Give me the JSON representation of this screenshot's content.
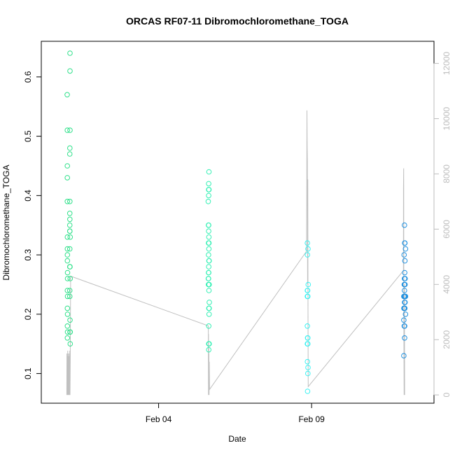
{
  "chart_data": {
    "type": "scatter",
    "title": "ORCAS RF07-11 Dibromochloromethane_TOGA",
    "xlabel": "Date",
    "ylabel": "Dibromochloromethane_TOGA",
    "x_axis": {
      "type": "date",
      "range": [
        "2016-01-31T04:00",
        "2016-02-13T00:00"
      ],
      "ticks": [
        {
          "value": "2016-02-04T00:00",
          "label": "Feb 04"
        },
        {
          "value": "2016-02-09T00:00",
          "label": "Feb 09"
        }
      ]
    },
    "y_axis": {
      "range": [
        0.05,
        0.66
      ],
      "ticks": [
        0.1,
        0.2,
        0.3,
        0.4,
        0.5,
        0.6
      ]
    },
    "y2_axis": {
      "range": [
        -300,
        12800
      ],
      "ticks": [
        0,
        2000,
        4000,
        6000,
        8000,
        10000,
        12000
      ],
      "color": "#bdbdbd"
    },
    "grid": false,
    "legend": "none",
    "series": [
      {
        "color": "#2fe08a",
        "points": [
          [
            "2016-02-01T00:20",
            0.57
          ],
          [
            "2016-02-01T00:25",
            0.51
          ],
          [
            "2016-02-01T00:25",
            0.45
          ],
          [
            "2016-02-01T00:25",
            0.43
          ],
          [
            "2016-02-01T00:25",
            0.39
          ],
          [
            "2016-02-01T00:30",
            0.33
          ],
          [
            "2016-02-01T00:30",
            0.31
          ],
          [
            "2016-02-01T00:30",
            0.3
          ],
          [
            "2016-02-01T00:30",
            0.29
          ],
          [
            "2016-02-01T00:35",
            0.27
          ],
          [
            "2016-02-01T00:35",
            0.26
          ],
          [
            "2016-02-01T00:30",
            0.24
          ],
          [
            "2016-02-01T00:35",
            0.23
          ],
          [
            "2016-02-01T00:30",
            0.21
          ],
          [
            "2016-02-01T00:35",
            0.2
          ],
          [
            "2016-02-01T00:30",
            0.18
          ],
          [
            "2016-02-01T00:35",
            0.17
          ],
          [
            "2016-02-01T00:30",
            0.16
          ],
          [
            "2016-02-01T02:30",
            0.64
          ],
          [
            "2016-02-01T02:30",
            0.61
          ],
          [
            "2016-02-01T02:30",
            0.51
          ],
          [
            "2016-02-01T02:25",
            0.48
          ],
          [
            "2016-02-01T02:20",
            0.47
          ],
          [
            "2016-02-01T02:25",
            0.39
          ],
          [
            "2016-02-01T02:20",
            0.37
          ],
          [
            "2016-02-01T02:25",
            0.36
          ],
          [
            "2016-02-01T02:20",
            0.35
          ],
          [
            "2016-02-01T02:20",
            0.34
          ],
          [
            "2016-02-01T02:25",
            0.34
          ],
          [
            "2016-02-01T02:40",
            0.33
          ],
          [
            "2016-02-01T02:20",
            0.31
          ],
          [
            "2016-02-01T02:30",
            0.28
          ],
          [
            "2016-02-01T02:20",
            0.28
          ],
          [
            "2016-02-01T02:40",
            0.26
          ],
          [
            "2016-02-01T02:20",
            0.24
          ],
          [
            "2016-02-01T02:20",
            0.23
          ],
          [
            "2016-02-01T02:30",
            0.19
          ],
          [
            "2016-02-01T02:30",
            0.17
          ],
          [
            "2016-02-01T02:40",
            0.17
          ],
          [
            "2016-02-01T02:40",
            0.15
          ]
        ]
      },
      {
        "color": "#33f0b4",
        "points": [
          [
            "2016-02-05T15:30",
            0.44
          ],
          [
            "2016-02-05T15:15",
            0.42
          ],
          [
            "2016-02-05T15:30",
            0.41
          ],
          [
            "2016-02-05T15:15",
            0.41
          ],
          [
            "2016-02-05T15:15",
            0.4
          ],
          [
            "2016-02-05T14:55",
            0.39
          ],
          [
            "2016-02-05T15:15",
            0.35
          ],
          [
            "2016-02-05T15:05",
            0.35
          ],
          [
            "2016-02-05T15:15",
            0.34
          ],
          [
            "2016-02-05T15:25",
            0.33
          ],
          [
            "2016-02-05T15:10",
            0.32
          ],
          [
            "2016-02-05T15:30",
            0.32
          ],
          [
            "2016-02-05T15:25",
            0.31
          ],
          [
            "2016-02-05T15:10",
            0.3
          ],
          [
            "2016-02-05T15:30",
            0.29
          ],
          [
            "2016-02-05T15:40",
            0.29
          ],
          [
            "2016-02-05T15:20",
            0.28
          ],
          [
            "2016-02-05T15:10",
            0.27
          ],
          [
            "2016-02-05T15:20",
            0.27
          ],
          [
            "2016-02-05T15:10",
            0.26
          ],
          [
            "2016-02-05T15:00",
            0.26
          ],
          [
            "2016-02-05T15:05",
            0.25
          ],
          [
            "2016-02-05T15:15",
            0.25
          ],
          [
            "2016-02-05T15:30",
            0.25
          ],
          [
            "2016-02-05T15:40",
            0.25
          ],
          [
            "2016-02-05T15:30",
            0.24
          ],
          [
            "2016-02-05T15:45",
            0.22
          ],
          [
            "2016-02-05T15:40",
            0.21
          ],
          [
            "2016-02-05T15:25",
            0.21
          ],
          [
            "2016-02-05T15:35",
            0.2
          ],
          [
            "2016-02-05T15:20",
            0.18
          ],
          [
            "2016-02-05T15:20",
            0.15
          ],
          [
            "2016-02-05T15:30",
            0.15
          ],
          [
            "2016-02-05T15:40",
            0.15
          ],
          [
            "2016-02-05T15:20",
            0.14
          ]
        ]
      },
      {
        "color": "#3af2f2",
        "points": [
          [
            "2016-02-08T20:40",
            0.32
          ],
          [
            "2016-02-08T21:10",
            0.31
          ],
          [
            "2016-02-08T20:45",
            0.3
          ],
          [
            "2016-02-08T21:20",
            0.25
          ],
          [
            "2016-02-08T20:40",
            0.24
          ],
          [
            "2016-02-08T20:55",
            0.24
          ],
          [
            "2016-02-08T20:40",
            0.23
          ],
          [
            "2016-02-08T21:00",
            0.23
          ],
          [
            "2016-02-08T20:40",
            0.18
          ],
          [
            "2016-02-08T20:50",
            0.16
          ],
          [
            "2016-02-08T21:00",
            0.16
          ],
          [
            "2016-02-08T20:40",
            0.15
          ],
          [
            "2016-02-08T21:00",
            0.15
          ],
          [
            "2016-02-08T20:45",
            0.12
          ],
          [
            "2016-02-08T21:10",
            0.11
          ],
          [
            "2016-02-08T21:05",
            0.1
          ],
          [
            "2016-02-08T20:50",
            0.07
          ]
        ]
      },
      {
        "color": "#1e90e0",
        "points": [
          [
            "2016-02-12T00:50",
            0.35
          ],
          [
            "2016-02-12T01:00",
            0.32
          ],
          [
            "2016-02-12T01:10",
            0.32
          ],
          [
            "2016-02-12T01:40",
            0.31
          ],
          [
            "2016-02-12T00:35",
            0.3
          ],
          [
            "2016-02-12T01:10",
            0.29
          ],
          [
            "2016-02-12T01:00",
            0.27
          ],
          [
            "2016-02-12T00:50",
            0.26
          ],
          [
            "2016-02-12T01:20",
            0.26
          ],
          [
            "2016-02-12T00:40",
            0.25
          ],
          [
            "2016-02-12T00:55",
            0.25
          ],
          [
            "2016-02-12T01:15",
            0.25
          ],
          [
            "2016-02-12T00:50",
            0.24
          ],
          [
            "2016-02-12T00:20",
            0.23
          ],
          [
            "2016-02-12T00:45",
            0.23
          ],
          [
            "2016-02-12T01:10",
            0.23
          ],
          [
            "2016-02-12T01:40",
            0.23
          ],
          [
            "2016-02-12T00:55",
            0.22
          ],
          [
            "2016-02-12T01:15",
            0.22
          ],
          [
            "2016-02-12T00:25",
            0.21
          ],
          [
            "2016-02-12T00:45",
            0.21
          ],
          [
            "2016-02-12T01:05",
            0.21
          ],
          [
            "2016-02-12T01:40",
            0.2
          ],
          [
            "2016-02-12T00:20",
            0.19
          ],
          [
            "2016-02-12T00:40",
            0.18
          ],
          [
            "2016-02-12T01:00",
            0.18
          ],
          [
            "2016-02-12T00:55",
            0.16
          ],
          [
            "2016-02-12T00:20",
            0.13
          ]
        ]
      }
    ],
    "secondary_series": {
      "color": "#c0c0c0",
      "axis": "right",
      "points": [
        [
          "2016-02-01T00:00",
          0
        ],
        [
          "2016-02-01T00:05",
          1500
        ],
        [
          "2016-02-01T00:15",
          0
        ],
        [
          "2016-02-01T00:25",
          1400
        ],
        [
          "2016-02-01T00:35",
          0
        ],
        [
          "2016-02-01T00:45",
          1600
        ],
        [
          "2016-02-01T00:55",
          0
        ],
        [
          "2016-02-01T01:10",
          1500
        ],
        [
          "2016-02-01T01:20",
          0
        ],
        [
          "2016-02-01T01:35",
          1400
        ],
        [
          "2016-02-01T01:45",
          0
        ],
        [
          "2016-02-01T02:00",
          1500
        ],
        [
          "2016-02-01T02:10",
          0
        ],
        [
          "2016-02-01T02:20",
          1600
        ],
        [
          "2016-02-01T02:30",
          0
        ],
        [
          "2016-02-01T02:45",
          1400
        ],
        [
          "2016-02-01T03:00",
          4300
        ],
        [
          "2016-02-05T15:00",
          2500
        ],
        [
          "2016-02-05T15:05",
          0
        ],
        [
          "2016-02-05T15:10",
          2200
        ],
        [
          "2016-02-05T15:15",
          0
        ],
        [
          "2016-02-05T15:20",
          1800
        ],
        [
          "2016-02-05T15:25",
          0
        ],
        [
          "2016-02-05T15:30",
          1500
        ],
        [
          "2016-02-05T15:35",
          0
        ],
        [
          "2016-02-05T15:45",
          1200
        ],
        [
          "2016-02-05T16:00",
          200
        ],
        [
          "2016-02-08T20:00",
          5200
        ],
        [
          "2016-02-08T20:10",
          7000
        ],
        [
          "2016-02-08T20:20",
          10300
        ],
        [
          "2016-02-08T20:30",
          9000
        ],
        [
          "2016-02-08T20:40",
          8500
        ],
        [
          "2016-02-08T20:50",
          4000
        ],
        [
          "2016-02-08T21:00",
          7800
        ],
        [
          "2016-02-08T21:10",
          3000
        ],
        [
          "2016-02-08T21:20",
          300
        ],
        [
          "2016-02-12T00:00",
          4500
        ],
        [
          "2016-02-12T00:05",
          7500
        ],
        [
          "2016-02-12T00:15",
          8200
        ],
        [
          "2016-02-12T00:25",
          2000
        ],
        [
          "2016-02-12T00:35",
          0
        ],
        [
          "2016-02-12T00:45",
          4000
        ],
        [
          "2016-02-12T01:00",
          0
        ]
      ]
    }
  }
}
